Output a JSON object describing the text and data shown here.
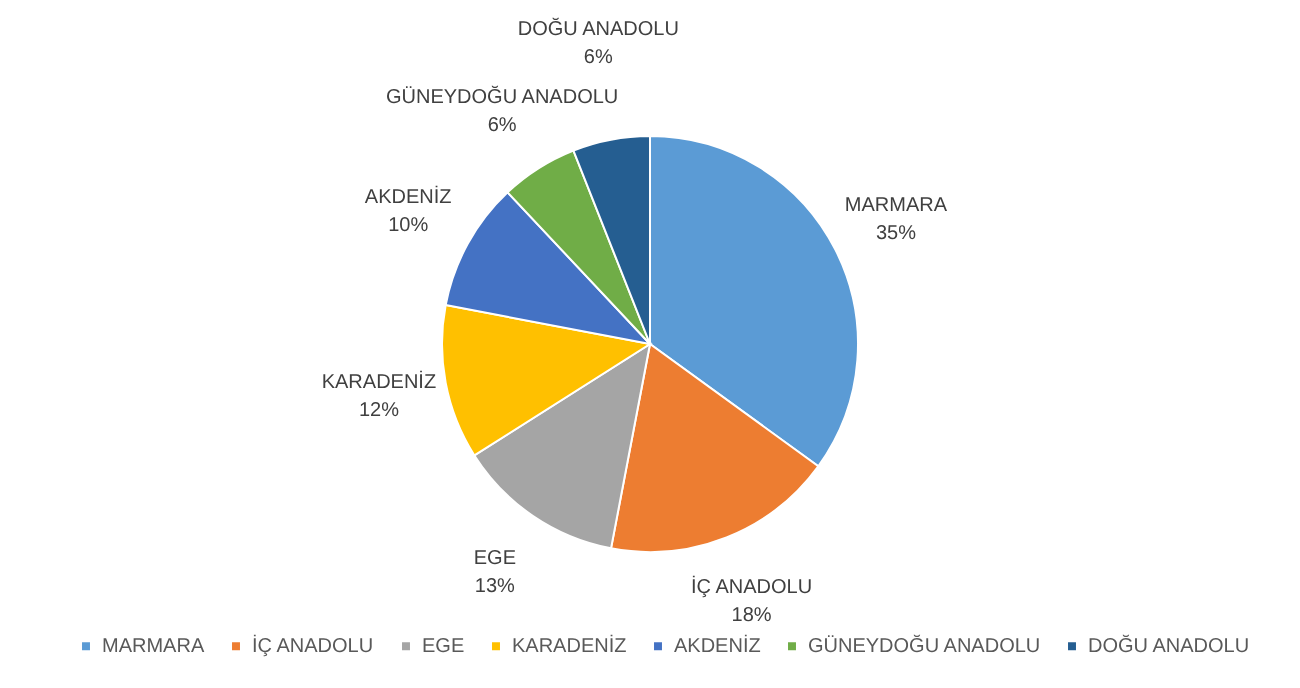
{
  "chart_data": {
    "type": "pie",
    "categories": [
      "MARMARA",
      "İÇ ANADOLU",
      "EGE",
      "KARADENİZ",
      "AKDENİZ",
      "GÜNEYDOĞU ANADOLU",
      "DOĞU ANADOLU"
    ],
    "values": [
      35,
      18,
      13,
      12,
      10,
      6,
      6
    ],
    "value_labels": [
      "35%",
      "18%",
      "13%",
      "12%",
      "10%",
      "6%",
      "6%"
    ],
    "colors": [
      "#5b9bd5",
      "#ed7d31",
      "#a5a5a5",
      "#ffc000",
      "#4472c4",
      "#70ad47",
      "#255e91"
    ],
    "legend": "bottom"
  }
}
